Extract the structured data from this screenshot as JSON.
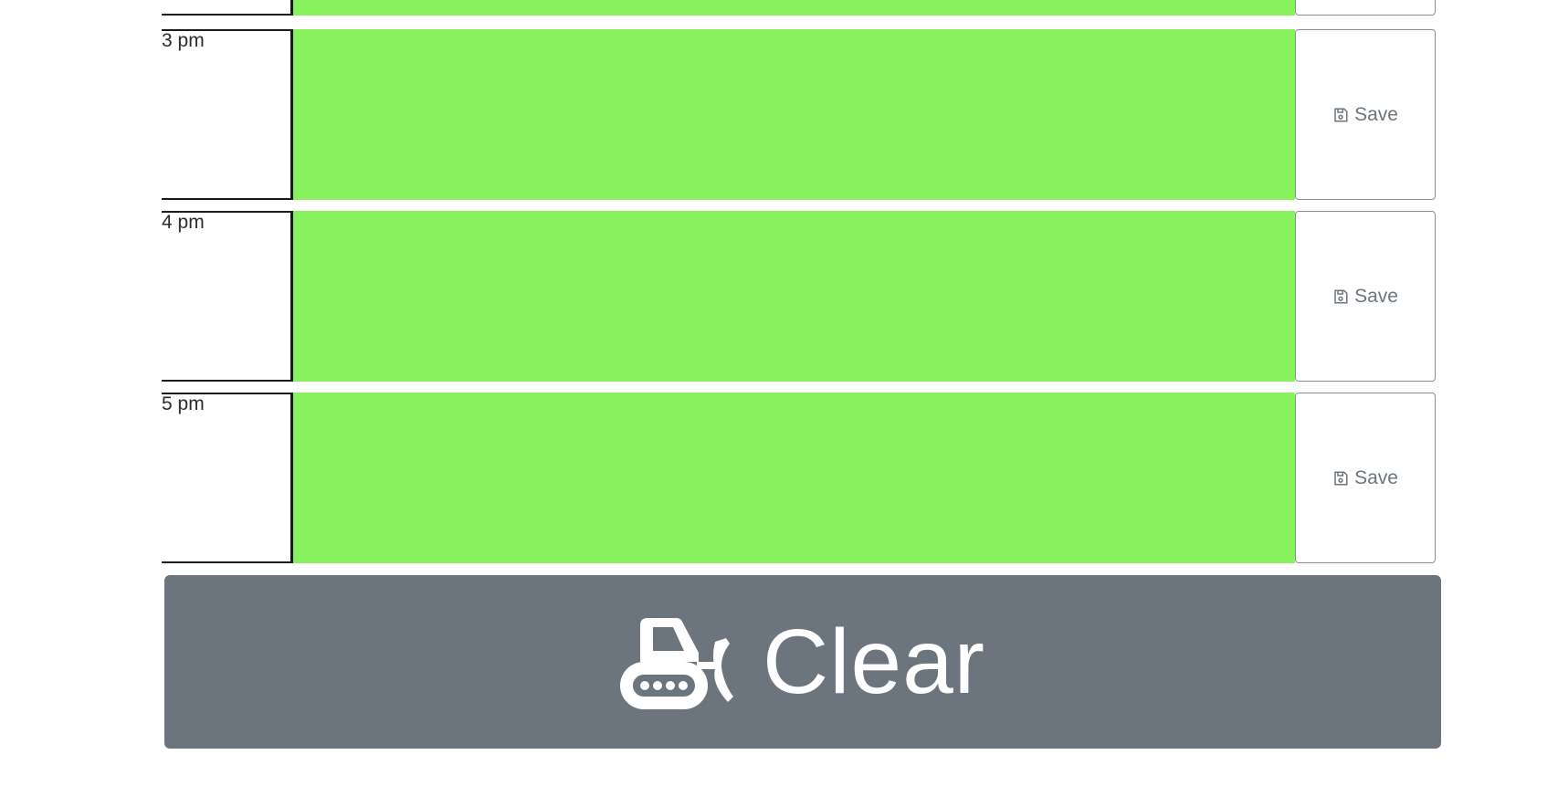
{
  "colors": {
    "present_row": "#87f15e",
    "clear_button_bg": "#6c757d",
    "save_text": "#6c757d"
  },
  "rows": [
    {
      "hour": "",
      "save_label": ""
    },
    {
      "hour": "3 pm",
      "save_label": "Save",
      "icon": "floppy-disk-icon"
    },
    {
      "hour": "4 pm",
      "save_label": "Save",
      "icon": "floppy-disk-icon"
    },
    {
      "hour": "5 pm",
      "save_label": "Save",
      "icon": "floppy-disk-icon"
    }
  ],
  "clear_button": {
    "label": "Clear",
    "icon": "bulldozer-icon"
  }
}
